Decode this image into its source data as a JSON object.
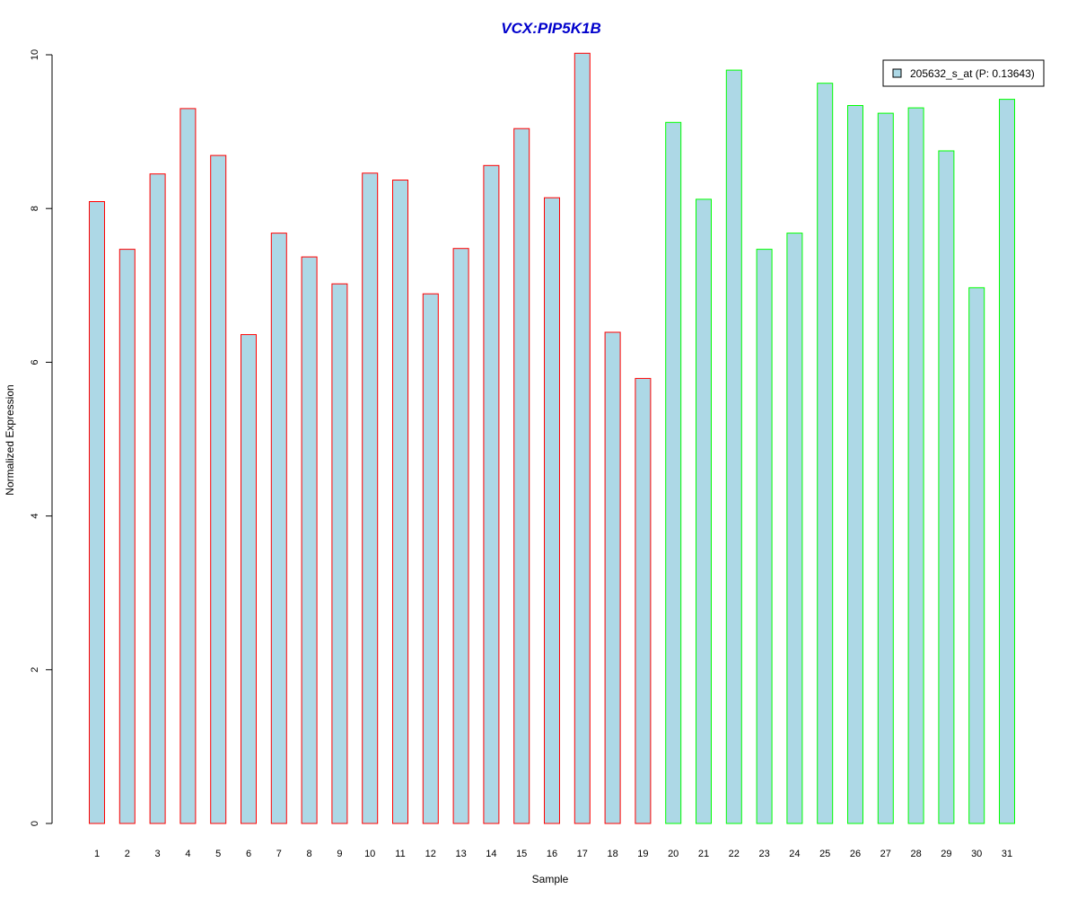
{
  "chart_data": {
    "type": "bar",
    "title": "VCX:PIP5K1B",
    "xlabel": "Sample",
    "ylabel": "Normalized Expression",
    "ylim": [
      0,
      10
    ],
    "yticks": [
      0,
      2,
      4,
      6,
      8,
      10
    ],
    "categories": [
      "1",
      "2",
      "3",
      "4",
      "5",
      "6",
      "7",
      "8",
      "9",
      "10",
      "11",
      "12",
      "13",
      "14",
      "15",
      "16",
      "17",
      "18",
      "19",
      "20",
      "21",
      "22",
      "23",
      "24",
      "25",
      "26",
      "27",
      "28",
      "29",
      "30",
      "31"
    ],
    "values": [
      8.09,
      7.47,
      8.45,
      9.3,
      8.69,
      6.36,
      7.68,
      7.37,
      7.02,
      8.46,
      8.37,
      6.89,
      7.48,
      8.56,
      9.04,
      8.14,
      10.02,
      6.39,
      5.79,
      9.12,
      8.12,
      9.8,
      7.47,
      7.68,
      9.63,
      9.34,
      9.24,
      9.31,
      8.75,
      6.97,
      9.42
    ],
    "groups": [
      1,
      1,
      1,
      1,
      1,
      1,
      1,
      1,
      1,
      1,
      1,
      1,
      1,
      1,
      1,
      1,
      1,
      1,
      1,
      2,
      2,
      2,
      2,
      2,
      2,
      2,
      2,
      2,
      2,
      2,
      2
    ],
    "legend": {
      "label": "205632_s_at (P: 0.13643)",
      "placement": "top-right"
    },
    "colors": {
      "title": "#0000CC",
      "fill": "#ADD8E6",
      "group1_border": "#FF0000",
      "group2_border": "#00FF00"
    },
    "grid": false
  }
}
